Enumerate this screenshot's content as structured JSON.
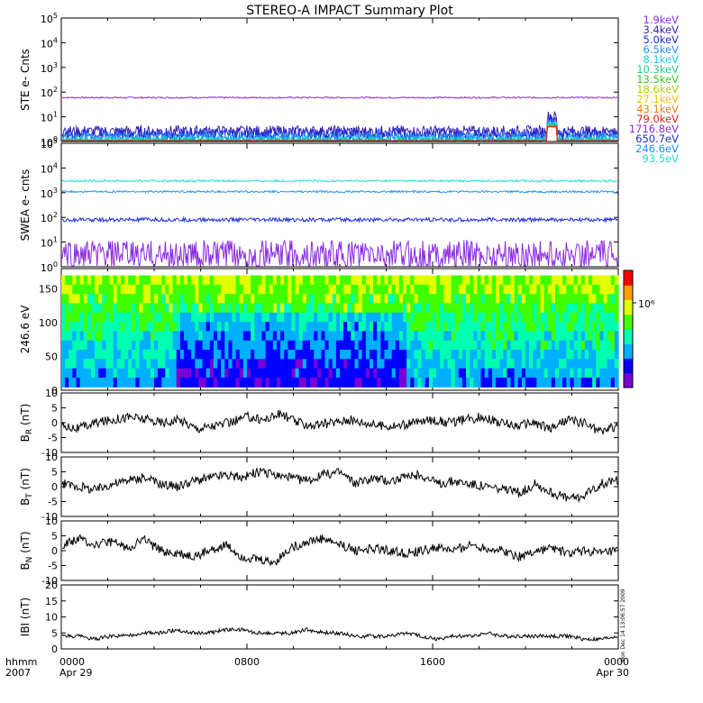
{
  "title": "STEREO-A IMPACT Summary Plot",
  "footer": {
    "time_label": "hhmm",
    "year": "2007",
    "xticks": [
      "0000",
      "0800",
      "1600",
      "0000"
    ],
    "date_start": "Apr 29",
    "date_end": "Apr 30"
  },
  "stamp": "Mon Dec 14 13:06:57 2009",
  "colorbar": {
    "label": "10⁶",
    "colors": [
      "#7a00d6",
      "#0000ff",
      "#00b0ff",
      "#00ffb0",
      "#40ff00",
      "#e0ff00",
      "#ffa000",
      "#ff0000"
    ]
  },
  "chart_data": [
    {
      "id": "ste",
      "type": "line",
      "ylabel": "STE e- Cnts",
      "scale": "log",
      "ylim": [
        1,
        100000
      ],
      "yticks": [
        {
          "b": "10",
          "e": "0"
        },
        {
          "b": "10",
          "e": "1"
        },
        {
          "b": "10",
          "e": "2"
        },
        {
          "b": "10",
          "e": "3"
        },
        {
          "b": "10",
          "e": "4"
        },
        {
          "b": "10",
          "e": "5"
        }
      ],
      "series": [
        {
          "name": "1.9keV",
          "color": "#8a2be2",
          "level": 60,
          "noise": 0.03
        },
        {
          "name": "3.4keV",
          "color": "#3a1fb0",
          "level": 2.5,
          "noise": 0.25
        },
        {
          "name": "5.0keV",
          "color": "#1a2ad8",
          "level": 2.0,
          "noise": 0.25
        },
        {
          "name": "6.5keV",
          "color": "#1e90ff",
          "level": 1.5,
          "noise": 0.2
        },
        {
          "name": "8.1keV",
          "color": "#20c8e0",
          "level": 1.2,
          "noise": 0.15
        },
        {
          "name": "10.3keV",
          "color": "#20d080",
          "level": 1.1,
          "noise": 0.1
        },
        {
          "name": "13.5keV",
          "color": "#3cc820",
          "level": 1.05,
          "noise": 0.05
        },
        {
          "name": "18.6keV",
          "color": "#b0d000",
          "level": 1.0,
          "noise": 0.02
        },
        {
          "name": "27.1keV",
          "color": "#f0c000",
          "level": 1.0,
          "noise": 0.02
        },
        {
          "name": "43.1keV",
          "color": "#f08000",
          "level": 1.0,
          "noise": 0.02
        },
        {
          "name": "79.0keV",
          "color": "#e02020",
          "level": 1.0,
          "noise": 0.02
        }
      ]
    },
    {
      "id": "swea",
      "type": "line",
      "ylabel": "SWEA e- cnts",
      "scale": "log",
      "ylim": [
        1,
        100000
      ],
      "yticks": [
        {
          "b": "10",
          "e": "0"
        },
        {
          "b": "10",
          "e": "1"
        },
        {
          "b": "10",
          "e": "2"
        },
        {
          "b": "10",
          "e": "3"
        },
        {
          "b": "10",
          "e": "4"
        },
        {
          "b": "10",
          "e": "5"
        }
      ],
      "series": [
        {
          "name": "1716.8eV",
          "color": "#8a2be2",
          "level": 3,
          "noise": 0.6
        },
        {
          "name": "650.7eV",
          "color": "#1a2ad8",
          "level": 80,
          "noise": 0.08
        },
        {
          "name": "246.6eV",
          "color": "#1e90ff",
          "level": 1100,
          "noise": 0.04
        },
        {
          "name": "93.5eV",
          "color": "#20e0c8",
          "level": 3000,
          "noise": 0.04
        }
      ]
    },
    {
      "id": "pad",
      "type": "heatmap",
      "ylabel": "246.6 eV",
      "ylim": [
        0,
        180
      ],
      "yticks": [
        "0",
        "50",
        "100",
        "150"
      ],
      "ytick_values": [
        0,
        50,
        100,
        150
      ]
    },
    {
      "id": "br",
      "type": "line",
      "ylabel": "B",
      "ysub": "R",
      "yunit": " (nT)",
      "ylim": [
        -10,
        10
      ],
      "yticks": [
        "-10",
        "-5",
        "0",
        "5",
        "10"
      ],
      "ytick_values": [
        -10,
        -5,
        0,
        5,
        10
      ],
      "series": [
        {
          "name": "",
          "color": "#000000"
        }
      ],
      "profile": [
        -1,
        -2,
        0,
        1,
        2,
        1,
        0,
        1,
        -2,
        -1,
        0,
        2,
        1,
        3,
        0,
        -1,
        0,
        1,
        0,
        -1,
        -1,
        0,
        1,
        0,
        1,
        2,
        0,
        -1,
        0,
        -2,
        1,
        0,
        -3,
        -1
      ]
    },
    {
      "id": "bt",
      "type": "line",
      "ylabel": "B",
      "ysub": "T",
      "yunit": " (nT)",
      "ylim": [
        -10,
        10
      ],
      "yticks": [
        "-10",
        "-5",
        "0",
        "5",
        "10"
      ],
      "ytick_values": [
        -10,
        -5,
        0,
        5,
        10
      ],
      "series": [
        {
          "name": "",
          "color": "#000000"
        }
      ],
      "profile": [
        1,
        0,
        -1,
        1,
        2,
        3,
        1,
        0,
        2,
        3,
        4,
        3,
        5,
        4,
        3,
        2,
        4,
        5,
        1,
        3,
        2,
        3,
        4,
        1,
        2,
        1,
        0,
        -1,
        -2,
        1,
        -2,
        -4,
        -3,
        1,
        2
      ]
    },
    {
      "id": "bn",
      "type": "line",
      "ylabel": "B",
      "ysub": "N",
      "yunit": " (nT)",
      "ylim": [
        -10,
        10
      ],
      "yticks": [
        "-10",
        "-5",
        "0",
        "5",
        "10"
      ],
      "ytick_values": [
        -10,
        -5,
        0,
        5,
        10
      ],
      "series": [
        {
          "name": "",
          "color": "#000000"
        }
      ],
      "profile": [
        2,
        4,
        2,
        3,
        1,
        4,
        0,
        -1,
        -2,
        0,
        2,
        -2,
        -3,
        -4,
        1,
        3,
        4,
        2,
        0,
        1,
        0,
        -1,
        0,
        1,
        0,
        2,
        1,
        0,
        -2,
        0,
        1,
        -1,
        0,
        -1,
        0
      ]
    },
    {
      "id": "bmag",
      "type": "line",
      "ylabel": "IBI (nT)",
      "ylim": [
        0,
        20
      ],
      "yticks": [
        "0",
        "5",
        "10",
        "15",
        "20"
      ],
      "ytick_values": [
        0,
        5,
        10,
        15,
        20
      ],
      "series": [
        {
          "name": "",
          "color": "#000000"
        }
      ],
      "profile": [
        4,
        4,
        3,
        4,
        4,
        5,
        5,
        6,
        5,
        5,
        6,
        6,
        5,
        5,
        5,
        6,
        5,
        5,
        4,
        4,
        4,
        5,
        4,
        3,
        4,
        4,
        5,
        4,
        4,
        4,
        4,
        4,
        3,
        3,
        4
      ]
    }
  ]
}
